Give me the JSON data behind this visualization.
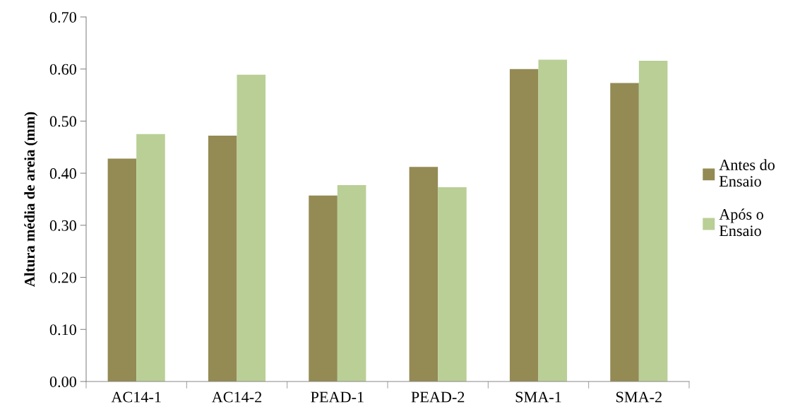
{
  "chart_data": {
    "type": "bar",
    "ylabel": "Altura média de areia (mm)",
    "categories": [
      "AC14-1",
      "AC14-2",
      "PEAD-1",
      "PEAD-2",
      "SMA-1",
      "SMA-2"
    ],
    "series": [
      {
        "name": "Antes do\nEnsaio",
        "color": "#948a54",
        "values": [
          0.428,
          0.472,
          0.357,
          0.412,
          0.6,
          0.573
        ]
      },
      {
        "name": "Após o\nEnsaio",
        "color": "#b9cf96",
        "values": [
          0.475,
          0.589,
          0.377,
          0.373,
          0.618,
          0.616
        ]
      }
    ],
    "ylim": [
      0,
      0.7
    ],
    "yticks": [
      {
        "value": 0,
        "label": "0.00"
      },
      {
        "value": 0.1,
        "label": "0.10"
      },
      {
        "value": 0.2,
        "label": "0.20"
      },
      {
        "value": 0.3,
        "label": "0.30"
      },
      {
        "value": 0.4,
        "label": "0.40"
      },
      {
        "value": 0.5,
        "label": "0.50"
      },
      {
        "value": 0.6,
        "label": "0.60"
      },
      {
        "value": 0.7,
        "label": "0.70"
      }
    ],
    "grid": false,
    "legend": "right"
  }
}
